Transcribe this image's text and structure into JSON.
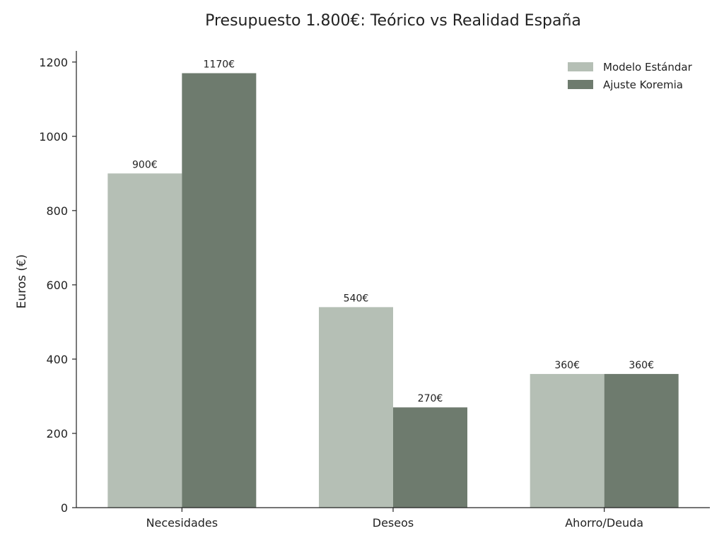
{
  "chart_data": {
    "type": "bar",
    "title": "Presupuesto 1.800€: Teórico vs Realidad España",
    "xlabel": "",
    "ylabel": "Euros (€)",
    "categories": [
      "Necesidades",
      "Deseos",
      "Ahorro/Deuda"
    ],
    "series": [
      {
        "name": "Modelo Estándar",
        "values": [
          900,
          540,
          360
        ],
        "labels": [
          "900€",
          "540€",
          "360€"
        ],
        "color": "#b5bfb5"
      },
      {
        "name": "Ajuste Koremia",
        "values": [
          1170,
          270,
          360
        ],
        "labels": [
          "1170€",
          "270€",
          "360€"
        ],
        "color": "#6e7b6e"
      }
    ],
    "ylim": [
      0,
      1230
    ],
    "yticks": [
      0,
      200,
      400,
      600,
      800,
      1000,
      1200
    ],
    "ytick_labels": [
      "0",
      "200",
      "400",
      "600",
      "800",
      "1000",
      "1200"
    ],
    "grid": false,
    "legend_position": "top-right"
  }
}
